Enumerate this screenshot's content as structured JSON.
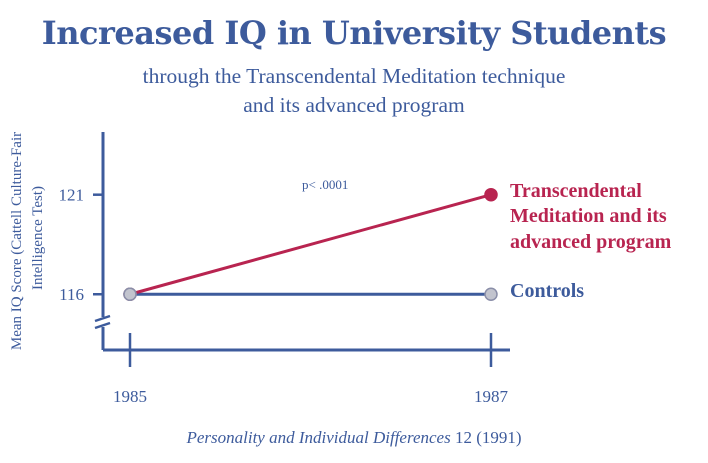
{
  "title": "Increased IQ in University Students",
  "subtitle_line1": "through the Transcendental Meditation technique",
  "subtitle_line2": "and its advanced program",
  "citation": {
    "journal": "Personality and Individual Differences",
    "details": " 12 (1991)"
  },
  "colors": {
    "primary": "#3d5b9c",
    "accent": "#b82450",
    "marker_fill": "#c2c4ce",
    "marker_stroke": "#8a8ea8"
  },
  "chart_data": {
    "type": "line",
    "title": "Increased IQ in University Students",
    "ylabel_line1": "Mean IQ Score (Cattell Culture-Fair",
    "ylabel_line2": "Intelligence Test)",
    "xlabel": "",
    "x": [
      "1985",
      "1987"
    ],
    "yticks": [
      116,
      121
    ],
    "ylim": [
      113.2,
      124.5
    ],
    "y_axis_break": true,
    "annotation": "p< .0001",
    "series": [
      {
        "name": "Transcendental Meditation and its advanced program",
        "label_lines": [
          "Transcendental",
          "Meditation and its",
          "advanced program"
        ],
        "values": [
          116,
          121
        ]
      },
      {
        "name": "Controls",
        "label_lines": [
          "Controls"
        ],
        "values": [
          116,
          116
        ]
      }
    ]
  }
}
